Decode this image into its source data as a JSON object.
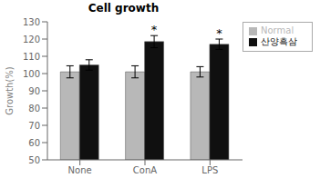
{
  "chart_data": {
    "type": "bar",
    "title": "Cell growth",
    "ylabel": "Growth(%)",
    "categories": [
      "None",
      "ConA",
      "LPS"
    ],
    "series": [
      {
        "name": "Normal",
        "color": "#b8b8b8",
        "values": [
          101,
          101,
          101
        ],
        "errors": [
          3.5,
          3.5,
          3.0
        ]
      },
      {
        "name": "산양흑삼",
        "color": "#101010",
        "values": [
          105,
          118.5,
          117
        ],
        "errors": [
          3.0,
          3.5,
          3.0
        ]
      }
    ],
    "ylim": [
      50,
      130
    ],
    "yticks": [
      50,
      60,
      70,
      80,
      90,
      100,
      110,
      120,
      130
    ],
    "grid": false,
    "legend": "right",
    "annotations": [
      {
        "text": "*",
        "category": "ConA",
        "series": "산양흑삼"
      },
      {
        "text": "*",
        "category": "LPS",
        "series": "산양흑삼"
      }
    ]
  }
}
